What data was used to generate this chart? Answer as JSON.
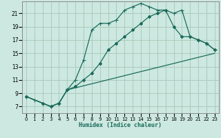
{
  "title": "",
  "xlabel": "Humidex (Indice chaleur)",
  "bg_color": "#cce8e0",
  "grid_color": "#aaccbb",
  "line_color": "#1a6b5a",
  "xlim": [
    -0.5,
    23.5
  ],
  "ylim": [
    6.0,
    22.8
  ],
  "xticks": [
    0,
    1,
    2,
    3,
    4,
    5,
    6,
    7,
    8,
    9,
    10,
    11,
    12,
    13,
    14,
    15,
    16,
    17,
    18,
    19,
    20,
    21,
    22,
    23
  ],
  "yticks": [
    7,
    9,
    11,
    13,
    15,
    17,
    19,
    21
  ],
  "line1_x": [
    0,
    1,
    2,
    3,
    4,
    5,
    6,
    7,
    8,
    9,
    10,
    11,
    12,
    13,
    14,
    15,
    16,
    17,
    18,
    19,
    20,
    21,
    22,
    23
  ],
  "line1_y": [
    8.5,
    8.0,
    7.5,
    7.0,
    7.5,
    9.5,
    11.0,
    14.0,
    18.5,
    19.5,
    19.5,
    20.0,
    21.5,
    22.0,
    22.5,
    22.0,
    21.5,
    21.5,
    21.0,
    21.5,
    17.5,
    17.0,
    16.5,
    15.5
  ],
  "line2_x": [
    0,
    2,
    3,
    4,
    5,
    6,
    7,
    8,
    9,
    10,
    11,
    12,
    13,
    14,
    15,
    16,
    17,
    18,
    19,
    20,
    21,
    22,
    23
  ],
  "line2_y": [
    8.5,
    7.5,
    7.0,
    7.5,
    9.5,
    10.0,
    11.0,
    12.0,
    13.5,
    15.5,
    16.5,
    17.5,
    18.5,
    19.5,
    20.5,
    21.0,
    21.5,
    19.0,
    17.5,
    17.5,
    17.0,
    16.5,
    15.5
  ],
  "line3_x": [
    0,
    2,
    3,
    4,
    5,
    23
  ],
  "line3_y": [
    8.5,
    7.5,
    7.0,
    7.5,
    9.5,
    15.0
  ]
}
